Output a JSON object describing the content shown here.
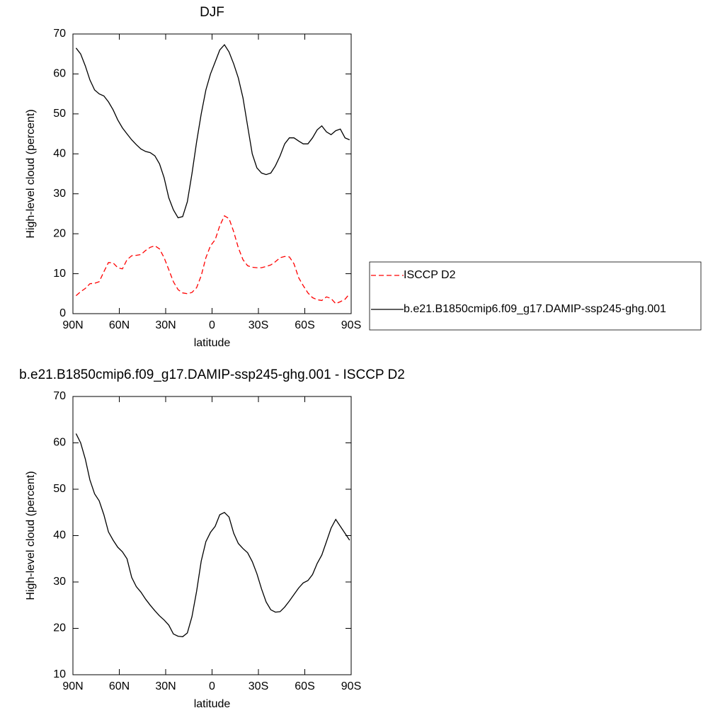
{
  "chart_data": [
    {
      "type": "line",
      "title": "DJF",
      "x_label": "latitude",
      "y_label": "High-level cloud (percent)",
      "x": [
        88,
        85,
        82,
        79,
        76,
        73,
        70,
        67,
        64,
        61,
        58,
        55,
        52,
        49,
        46,
        43,
        40,
        37,
        34,
        31,
        28,
        25,
        22,
        19,
        16,
        13,
        10,
        7,
        4,
        1,
        -2,
        -5,
        -8,
        -11,
        -14,
        -17,
        -20,
        -23,
        -26,
        -29,
        -32,
        -35,
        -38,
        -41,
        -44,
        -47,
        -50,
        -53,
        -56,
        -59,
        -62,
        -65,
        -68,
        -71,
        -74,
        -77,
        -80,
        -83,
        -86,
        -89
      ],
      "series": [
        {
          "name": "ISCCP D2",
          "color": "#ff0000",
          "line_style": "dashed",
          "values": [
            4.5,
            5.5,
            6.3,
            7.5,
            7.6,
            8,
            10.5,
            12.8,
            12.7,
            11.5,
            11.2,
            13.5,
            14.5,
            14.6,
            14.8,
            15.8,
            16.6,
            17,
            16.2,
            14,
            11,
            8,
            6,
            5.2,
            5,
            5.3,
            6.5,
            9.5,
            14,
            17,
            18.5,
            22,
            24.5,
            23.8,
            20.5,
            16.5,
            13.5,
            12,
            11.6,
            11.5,
            11.5,
            11.8,
            12.2,
            13,
            14,
            14.3,
            14.2,
            12.5,
            9,
            7,
            5.2,
            4,
            3.5,
            3.3,
            4.2,
            3.8,
            2.5,
            3,
            3.6,
            5
          ]
        },
        {
          "name": "b.e21.B1850cmip6.f09_g17.DAMIP-ssp245-ghg.001",
          "color": "#000000",
          "line_style": "solid",
          "values": [
            66.5,
            65,
            62,
            58.5,
            56,
            55,
            54.5,
            53,
            51,
            48.5,
            46.5,
            45,
            43.5,
            42.3,
            41.2,
            40.6,
            40.3,
            39.5,
            37.5,
            34,
            29,
            26,
            24,
            24.3,
            28,
            35,
            43,
            50,
            56,
            60,
            63,
            66,
            67.3,
            65.5,
            62.5,
            59,
            54,
            47,
            40,
            36.5,
            35.2,
            34.8,
            35.2,
            37,
            39.5,
            42.5,
            44,
            44,
            43.2,
            42.5,
            42.5,
            44,
            46,
            47,
            45.5,
            44.8,
            45.8,
            46.2,
            44,
            43.5
          ]
        }
      ],
      "xlim": [
        90,
        -90
      ],
      "xticks": [
        {
          "value": 90,
          "label": "90N"
        },
        {
          "value": 60,
          "label": "60N"
        },
        {
          "value": 30,
          "label": "30N"
        },
        0,
        {
          "value": -30,
          "label": "30S"
        },
        {
          "value": -60,
          "label": "60S"
        },
        {
          "value": -90,
          "label": "90S"
        }
      ],
      "ylim": [
        0,
        70
      ],
      "yticks": [
        0,
        10,
        20,
        30,
        40,
        50,
        60,
        70
      ],
      "legend": "right"
    },
    {
      "type": "line",
      "title": "b.e21.B1850cmip6.f09_g17.DAMIP-ssp245-ghg.001 - ISCCP D2",
      "x_label": "latitude",
      "y_label": "High-level cloud (percent)",
      "x": [
        88,
        85,
        82,
        79,
        76,
        73,
        70,
        67,
        64,
        61,
        58,
        55,
        52,
        49,
        46,
        43,
        40,
        37,
        34,
        31,
        28,
        25,
        22,
        19,
        16,
        13,
        10,
        7,
        4,
        1,
        -2,
        -5,
        -8,
        -11,
        -14,
        -17,
        -20,
        -23,
        -26,
        -29,
        -32,
        -35,
        -38,
        -41,
        -44,
        -47,
        -50,
        -53,
        -56,
        -59,
        -62,
        -65,
        -68,
        -71,
        -74,
        -77,
        -80,
        -83,
        -86,
        -89
      ],
      "series": [
        {
          "color": "#000000",
          "line_style": "solid",
          "values": [
            62,
            60,
            56.5,
            52,
            49,
            47.5,
            44.5,
            40.8,
            39,
            37.5,
            36.5,
            35,
            31,
            29,
            27.8,
            26.3,
            25,
            23.8,
            22.7,
            21.8,
            20.7,
            18.8,
            18.3,
            18.2,
            19,
            22.5,
            28,
            34.5,
            38.7,
            40.7,
            42,
            44.5,
            45,
            44,
            40.5,
            38.3,
            37.2,
            36.3,
            34.4,
            31.8,
            28.5,
            25.7,
            24,
            23.5,
            23.6,
            24.6,
            25.9,
            27.3,
            28.7,
            29.8,
            30.3,
            31.6,
            34,
            35.8,
            38.7,
            41.6,
            43.5,
            42,
            40.5,
            39
          ]
        }
      ],
      "xlim": [
        90,
        -90
      ],
      "xticks": [
        {
          "value": 90,
          "label": "90N"
        },
        {
          "value": 60,
          "label": "60N"
        },
        {
          "value": 30,
          "label": "30N"
        },
        0,
        {
          "value": -30,
          "label": "30S"
        },
        {
          "value": -60,
          "label": "60S"
        },
        {
          "value": -90,
          "label": "90S"
        }
      ],
      "ylim": [
        10,
        70
      ],
      "yticks": [
        10,
        20,
        30,
        40,
        50,
        60,
        70
      ]
    }
  ]
}
